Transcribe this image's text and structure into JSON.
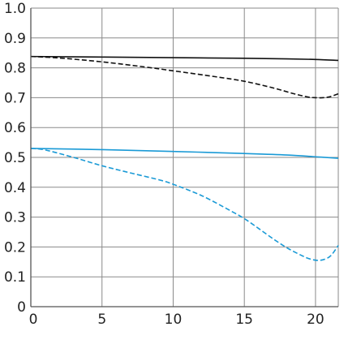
{
  "chart_data": {
    "type": "line",
    "title": "",
    "xlabel": "",
    "ylabel": "",
    "xlim": [
      0,
      21.6
    ],
    "ylim": [
      0,
      1.0
    ],
    "grid": true,
    "x_ticks": [
      0,
      5,
      10,
      15,
      20
    ],
    "x_tick_labels": [
      "0",
      "5",
      "10",
      "15",
      "20"
    ],
    "y_ticks": [
      0,
      0.1,
      0.2,
      0.3,
      0.4,
      0.5,
      0.6,
      0.7,
      0.8,
      0.9,
      1.0
    ],
    "y_tick_labels": [
      "0",
      "0.1",
      "0.2",
      "0.3",
      "0.4",
      "0.5",
      "0.6",
      "0.7",
      "0.8",
      "0.9",
      "1.0"
    ],
    "series": [
      {
        "color": "#111111",
        "dash": "solid",
        "x": [
          0,
          5,
          10,
          15,
          18,
          20,
          21.6
        ],
        "y": [
          0.838,
          0.836,
          0.834,
          0.832,
          0.83,
          0.828,
          0.825
        ]
      },
      {
        "color": "#111111",
        "dash": "dashed",
        "x": [
          0,
          2,
          5,
          8,
          10,
          13,
          15,
          17,
          18.5,
          19.5,
          20,
          20.5,
          21,
          21.6
        ],
        "y": [
          0.838,
          0.833,
          0.82,
          0.803,
          0.79,
          0.77,
          0.755,
          0.733,
          0.713,
          0.702,
          0.7,
          0.7,
          0.703,
          0.713
        ]
      },
      {
        "color": "#1a9ad6",
        "dash": "solid",
        "x": [
          0,
          5,
          10,
          15,
          18,
          20,
          21.6
        ],
        "y": [
          0.53,
          0.526,
          0.52,
          0.513,
          0.508,
          0.502,
          0.497
        ]
      },
      {
        "color": "#1a9ad6",
        "dash": "dashed",
        "x": [
          0,
          1,
          3,
          5,
          7,
          9,
          10,
          12,
          14,
          15,
          16,
          17,
          18,
          19,
          19.6,
          20.2,
          20.7,
          21.1,
          21.6
        ],
        "y": [
          0.53,
          0.525,
          0.5,
          0.472,
          0.448,
          0.425,
          0.41,
          0.372,
          0.322,
          0.295,
          0.262,
          0.228,
          0.197,
          0.172,
          0.16,
          0.155,
          0.16,
          0.172,
          0.205
        ]
      }
    ]
  }
}
